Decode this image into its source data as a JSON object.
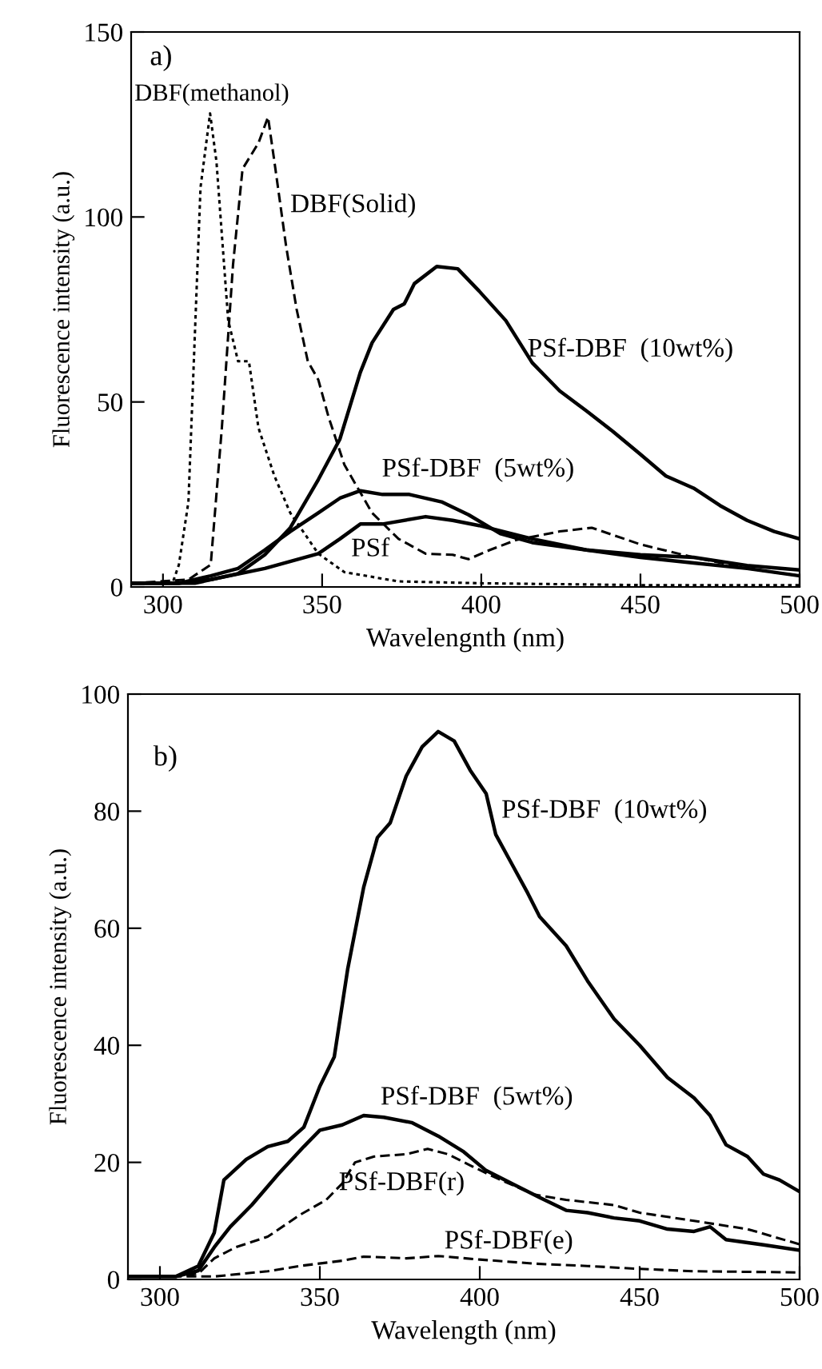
{
  "chart_data": [
    {
      "type": "line",
      "xlabel": "Wavelengnth (nm)",
      "ylabel": "Fluorescence intensity (a.u.)",
      "xlim": [
        290,
        500
      ],
      "ylim": [
        0,
        150
      ],
      "xticks": [
        300,
        350,
        400,
        450,
        500
      ],
      "yticks": [
        0,
        50,
        100,
        150
      ],
      "grid": false,
      "legend": false,
      "series": [
        {
          "name": "DBF(methanol)",
          "color": "#000000",
          "line_style": "dotted",
          "x": [
            290,
            303,
            305,
            308,
            311.8,
            314.8,
            316.8,
            320.5,
            323.6,
            327,
            330,
            335,
            340,
            348.8,
            357,
            374,
            400,
            450,
            500
          ],
          "values": [
            1,
            1,
            6,
            23,
            108,
            128,
            115,
            72,
            61,
            61,
            43,
            30,
            20,
            9,
            4,
            1.5,
            1,
            0.5,
            0.5
          ]
        },
        {
          "name": "DBF(Solid)",
          "color": "#000000",
          "line_style": "dashed",
          "x": [
            290,
            308,
            315,
            318.5,
            322,
            325,
            330,
            333,
            335,
            338.7,
            342,
            345.5,
            348.8,
            352,
            357,
            365.7,
            374,
            382.5,
            391,
            396,
            402.7,
            411,
            424.6,
            434.7,
            450,
            466.7,
            483.5,
            500
          ],
          "values": [
            1,
            2,
            6,
            43,
            87,
            113,
            120,
            127,
            115,
            92,
            75,
            61,
            56,
            46,
            33,
            20,
            13,
            9,
            8.7,
            7.5,
            10,
            12.7,
            15,
            16,
            11.5,
            8,
            5,
            3
          ]
        },
        {
          "name": "PSf-DBF  (10wt%)",
          "color": "#000000",
          "line_style": "solid",
          "x": [
            290,
            310,
            323.6,
            332,
            340,
            348.8,
            355.6,
            362,
            365.7,
            372.4,
            375.8,
            379,
            386,
            392.6,
            399.3,
            407.7,
            416,
            424.6,
            433,
            441.4,
            449.8,
            458,
            466.7,
            475,
            483.5,
            492,
            500
          ],
          "values": [
            1,
            1,
            3.6,
            8.7,
            16,
            29,
            40,
            58,
            66,
            75,
            76.5,
            82,
            86.6,
            86,
            80,
            72,
            60.6,
            53,
            47.6,
            42,
            36,
            30,
            26.7,
            22,
            18,
            15,
            13
          ]
        },
        {
          "name": "PSf-DBF  (5wt%)",
          "color": "#000000",
          "line_style": "solid",
          "x": [
            290,
            305,
            315,
            323.6,
            332,
            340,
            348.8,
            355.6,
            362,
            369,
            377.4,
            387.5,
            396,
            406,
            416,
            433,
            450,
            466.7,
            483.5,
            500
          ],
          "values": [
            1,
            1,
            3,
            5,
            10,
            15,
            20,
            24,
            26,
            25,
            25,
            23,
            19.5,
            14.4,
            12,
            10,
            8.7,
            8,
            5.8,
            4.6
          ]
        },
        {
          "name": "PSf",
          "color": "#000000",
          "line_style": "solid",
          "x": [
            290,
            305,
            315,
            332,
            348.8,
            355.6,
            362,
            369,
            382.5,
            391,
            399.3,
            416,
            433,
            450,
            466.7,
            483.5,
            500
          ],
          "values": [
            1,
            1,
            2,
            5,
            9,
            13,
            17,
            17,
            19,
            18,
            16.6,
            13,
            10,
            8,
            6.5,
            5,
            3
          ]
        }
      ],
      "annotations": [
        "a)"
      ]
    },
    {
      "type": "line",
      "xlabel": "Wavelength (nm)",
      "ylabel": "Fluorescence intensity (a.u.)",
      "xlim": [
        290,
        500
      ],
      "ylim": [
        0,
        100
      ],
      "xticks": [
        300,
        350,
        400,
        450,
        500
      ],
      "yticks": [
        0,
        20,
        40,
        60,
        80,
        100
      ],
      "grid": false,
      "legend": false,
      "series": [
        {
          "name": "PSf-DBF  (10wt%)",
          "color": "#000000",
          "line_style": "solid",
          "x": [
            290,
            305,
            312,
            317,
            320,
            327,
            333.7,
            340,
            345,
            350,
            354.5,
            358.7,
            363.7,
            368,
            372,
            377,
            382,
            387,
            392,
            397,
            402,
            405,
            410,
            415,
            418.7,
            427,
            433.7,
            442,
            450,
            458.7,
            467,
            472,
            477,
            483.7,
            488.7,
            493.7,
            500
          ],
          "values": [
            0.5,
            0.5,
            2.3,
            8,
            17,
            20.5,
            22.7,
            23.6,
            26,
            33,
            38,
            53,
            67,
            75.5,
            78,
            86,
            91,
            93.6,
            92,
            87,
            83,
            76,
            71,
            66,
            62,
            57,
            51,
            44.5,
            40,
            34.5,
            31,
            28,
            23,
            21,
            18,
            17,
            15
          ]
        },
        {
          "name": "PSf-DBF  (5wt%)",
          "color": "#000000",
          "line_style": "solid",
          "x": [
            290,
            305,
            312,
            317,
            322,
            328.7,
            337,
            345,
            350,
            357,
            363.7,
            370,
            378.7,
            387,
            395,
            402,
            410,
            418.7,
            427,
            433.7,
            442,
            450,
            458.7,
            467,
            472,
            477,
            488.7,
            500
          ],
          "values": [
            0.5,
            0.5,
            1.5,
            5.5,
            9,
            12.7,
            18,
            22.7,
            25.5,
            26.4,
            28,
            27.7,
            26.8,
            24.5,
            21.8,
            18.6,
            16.4,
            14,
            11.8,
            11.4,
            10.5,
            10,
            8.6,
            8.2,
            9,
            6.8,
            5.9,
            5
          ]
        },
        {
          "name": "PSf-DBF(r)",
          "color": "#000000",
          "line_style": "dashed",
          "x": [
            290,
            305,
            312,
            317,
            323.7,
            333.7,
            343.7,
            352,
            357,
            361,
            367,
            377,
            383.7,
            390,
            397,
            403.7,
            417,
            427,
            442,
            450,
            467,
            483.7,
            500
          ],
          "values": [
            0.5,
            0.5,
            1,
            3.6,
            5.5,
            7.3,
            11,
            13.6,
            16.4,
            20,
            21,
            21.4,
            22.3,
            21.4,
            19.5,
            17.7,
            14.5,
            13.6,
            12.7,
            11.4,
            10,
            8.6,
            6
          ]
        },
        {
          "name": "PSf-DBF(e)",
          "color": "#000000",
          "line_style": "dashed",
          "x": [
            290,
            317,
            333.7,
            343.7,
            357,
            363.7,
            377,
            387,
            400,
            417,
            433.7,
            450,
            467,
            500
          ],
          "values": [
            0.5,
            0.5,
            1.4,
            2.3,
            3.2,
            3.9,
            3.6,
            4,
            3.4,
            2.7,
            2.3,
            1.8,
            1.4,
            1.2
          ]
        }
      ],
      "annotations": [
        "b)"
      ]
    }
  ]
}
